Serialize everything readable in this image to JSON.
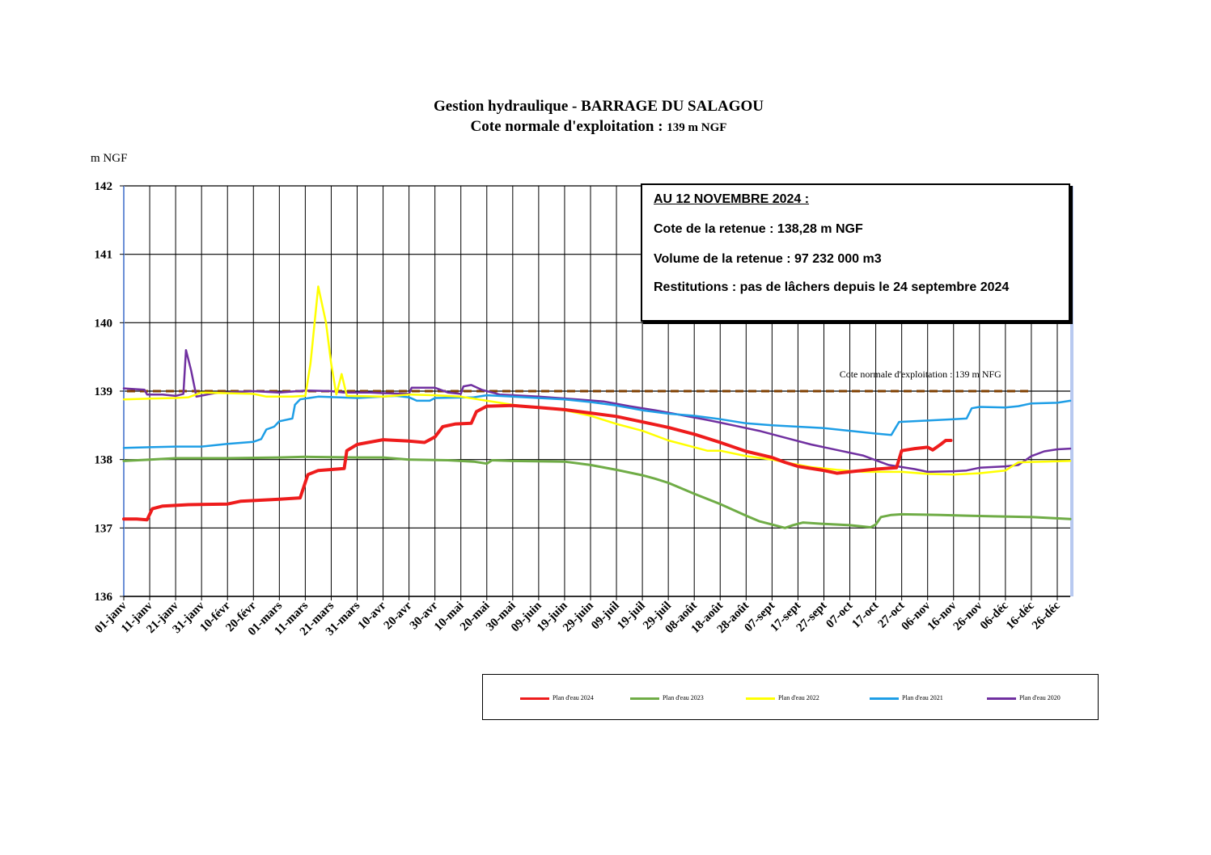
{
  "title_line1": "Gestion hydraulique - BARRAGE DU SALAGOU",
  "title_line2": "Cote normale d'exploitation :",
  "title_line2_value": "139 m NGF",
  "infobox": {
    "heading": "AU 12 NOVEMBRE 2024 :",
    "cote": "Cote de la retenue : 138,28 m NGF",
    "volume": "Volume de la retenue : 97 232 000 m3",
    "restitutions": "Restitutions : pas de lâchers depuis le 24 septembre 2024"
  },
  "colors": {
    "s2024": "#ee1c1c",
    "s2023": "#6fac46",
    "s2022": "#ffff00",
    "s2021": "#1e9ee6",
    "s2020": "#7030a0",
    "reference": "#7f3f00"
  },
  "chart_data": {
    "type": "line",
    "ylabel": "m NGF",
    "ylim": [
      136,
      142
    ],
    "yticks": [
      136,
      137,
      138,
      139,
      140,
      141,
      142
    ],
    "xlim_days": [
      0,
      365
    ],
    "x_ticks": [
      "01-janv",
      "11-janv",
      "21-janv",
      "31-janv",
      "10-févr",
      "20-févr",
      "01-mars",
      "11-mars",
      "21-mars",
      "31-mars",
      "10-avr",
      "20-avr",
      "30-avr",
      "10-mai",
      "20-mai",
      "30-mai",
      "09-juin",
      "19-juin",
      "29-juin",
      "09-juil",
      "19-juil",
      "29-juil",
      "08-août",
      "18-août",
      "28-août",
      "07-sept",
      "17-sept",
      "27-sept",
      "07-oct",
      "17-oct",
      "27-oct",
      "06-nov",
      "16-nov",
      "26-nov",
      "06-déc",
      "16-déc",
      "26-déc"
    ],
    "reference_line": {
      "value": 139,
      "label": "Cote normale d'exploitation : 139 m NFG"
    },
    "legend_position": "bottom",
    "series": [
      {
        "name": "Plan d'eau 2024",
        "color_key": "s2024",
        "width": 4,
        "points": [
          [
            0,
            137.13
          ],
          [
            5,
            137.13
          ],
          [
            9,
            137.12
          ],
          [
            11,
            137.28
          ],
          [
            15,
            137.32
          ],
          [
            25,
            137.34
          ],
          [
            40,
            137.35
          ],
          [
            45,
            137.39
          ],
          [
            60,
            137.42
          ],
          [
            68,
            137.44
          ],
          [
            71,
            137.78
          ],
          [
            75,
            137.84
          ],
          [
            85,
            137.87
          ],
          [
            86,
            138.13
          ],
          [
            90,
            138.22
          ],
          [
            100,
            138.29
          ],
          [
            110,
            138.27
          ],
          [
            116,
            138.25
          ],
          [
            120,
            138.33
          ],
          [
            123,
            138.48
          ],
          [
            128,
            138.52
          ],
          [
            134,
            138.53
          ],
          [
            136,
            138.7
          ],
          [
            140,
            138.78
          ],
          [
            150,
            138.79
          ],
          [
            160,
            138.76
          ],
          [
            170,
            138.73
          ],
          [
            180,
            138.68
          ],
          [
            190,
            138.63
          ],
          [
            200,
            138.55
          ],
          [
            210,
            138.47
          ],
          [
            220,
            138.37
          ],
          [
            230,
            138.25
          ],
          [
            240,
            138.12
          ],
          [
            250,
            138.03
          ],
          [
            255,
            137.96
          ],
          [
            260,
            137.9
          ],
          [
            270,
            137.84
          ],
          [
            275,
            137.8
          ],
          [
            282,
            137.83
          ],
          [
            290,
            137.86
          ],
          [
            298,
            137.88
          ],
          [
            300,
            138.13
          ],
          [
            305,
            138.16
          ],
          [
            310,
            138.18
          ],
          [
            312,
            138.14
          ],
          [
            315,
            138.22
          ],
          [
            317,
            138.28
          ],
          [
            319,
            138.28
          ]
        ]
      },
      {
        "name": "Plan d'eau 2023",
        "color_key": "s2023",
        "width": 3,
        "points": [
          [
            0,
            137.98
          ],
          [
            10,
            138.0
          ],
          [
            20,
            138.02
          ],
          [
            40,
            138.02
          ],
          [
            60,
            138.03
          ],
          [
            70,
            138.04
          ],
          [
            90,
            138.03
          ],
          [
            100,
            138.03
          ],
          [
            110,
            138.0
          ],
          [
            125,
            137.99
          ],
          [
            135,
            137.97
          ],
          [
            140,
            137.94
          ],
          [
            142,
            137.99
          ],
          [
            150,
            137.98
          ],
          [
            170,
            137.97
          ],
          [
            180,
            137.92
          ],
          [
            190,
            137.85
          ],
          [
            200,
            137.77
          ],
          [
            205,
            137.72
          ],
          [
            210,
            137.66
          ],
          [
            220,
            137.5
          ],
          [
            230,
            137.35
          ],
          [
            240,
            137.18
          ],
          [
            245,
            137.1
          ],
          [
            250,
            137.05
          ],
          [
            255,
            137.0
          ],
          [
            258,
            137.04
          ],
          [
            262,
            137.08
          ],
          [
            270,
            137.06
          ],
          [
            280,
            137.04
          ],
          [
            288,
            137.01
          ],
          [
            290,
            137.05
          ],
          [
            292,
            137.16
          ],
          [
            296,
            137.19
          ],
          [
            300,
            137.2
          ],
          [
            315,
            137.19
          ],
          [
            325,
            137.18
          ],
          [
            335,
            137.17
          ],
          [
            350,
            137.16
          ],
          [
            365,
            137.13
          ]
        ]
      },
      {
        "name": "Plan d'eau 2022",
        "color_key": "s2022",
        "width": 2.5,
        "points": [
          [
            0,
            138.88
          ],
          [
            10,
            138.89
          ],
          [
            20,
            138.9
          ],
          [
            25,
            138.91
          ],
          [
            30,
            138.98
          ],
          [
            50,
            138.96
          ],
          [
            55,
            138.92
          ],
          [
            65,
            138.92
          ],
          [
            70,
            138.93
          ],
          [
            72,
            139.4
          ],
          [
            75,
            140.53
          ],
          [
            78,
            140.0
          ],
          [
            80,
            139.4
          ],
          [
            82,
            138.95
          ],
          [
            84,
            139.25
          ],
          [
            86,
            138.93
          ],
          [
            100,
            138.92
          ],
          [
            110,
            138.95
          ],
          [
            120,
            138.94
          ],
          [
            130,
            138.92
          ],
          [
            140,
            138.86
          ],
          [
            150,
            138.8
          ],
          [
            160,
            138.76
          ],
          [
            170,
            138.72
          ],
          [
            180,
            138.64
          ],
          [
            190,
            138.52
          ],
          [
            200,
            138.42
          ],
          [
            210,
            138.28
          ],
          [
            220,
            138.18
          ],
          [
            225,
            138.13
          ],
          [
            230,
            138.13
          ],
          [
            240,
            138.05
          ],
          [
            250,
            138.0
          ],
          [
            255,
            137.96
          ],
          [
            265,
            137.89
          ],
          [
            275,
            137.85
          ],
          [
            285,
            137.82
          ],
          [
            300,
            137.82
          ],
          [
            310,
            137.79
          ],
          [
            320,
            137.78
          ],
          [
            330,
            137.8
          ],
          [
            340,
            137.84
          ],
          [
            345,
            137.96
          ],
          [
            355,
            137.97
          ],
          [
            365,
            137.98
          ]
        ]
      },
      {
        "name": "Plan d'eau 2021",
        "color_key": "s2021",
        "width": 2.5,
        "points": [
          [
            0,
            138.17
          ],
          [
            10,
            138.18
          ],
          [
            20,
            138.19
          ],
          [
            30,
            138.19
          ],
          [
            40,
            138.23
          ],
          [
            50,
            138.26
          ],
          [
            53,
            138.3
          ],
          [
            55,
            138.44
          ],
          [
            58,
            138.48
          ],
          [
            60,
            138.56
          ],
          [
            65,
            138.6
          ],
          [
            66,
            138.8
          ],
          [
            68,
            138.88
          ],
          [
            75,
            138.92
          ],
          [
            90,
            138.9
          ],
          [
            100,
            138.92
          ],
          [
            105,
            138.93
          ],
          [
            110,
            138.91
          ],
          [
            113,
            138.86
          ],
          [
            118,
            138.86
          ],
          [
            120,
            138.9
          ],
          [
            135,
            138.91
          ],
          [
            140,
            138.94
          ],
          [
            150,
            138.92
          ],
          [
            170,
            138.88
          ],
          [
            180,
            138.84
          ],
          [
            190,
            138.79
          ],
          [
            200,
            138.72
          ],
          [
            210,
            138.67
          ],
          [
            220,
            138.64
          ],
          [
            230,
            138.59
          ],
          [
            240,
            138.53
          ],
          [
            250,
            138.5
          ],
          [
            260,
            138.48
          ],
          [
            270,
            138.46
          ],
          [
            280,
            138.42
          ],
          [
            290,
            138.38
          ],
          [
            296,
            138.36
          ],
          [
            299,
            138.55
          ],
          [
            310,
            138.57
          ],
          [
            320,
            138.59
          ],
          [
            325,
            138.6
          ],
          [
            327,
            138.75
          ],
          [
            330,
            138.77
          ],
          [
            340,
            138.76
          ],
          [
            345,
            138.78
          ],
          [
            350,
            138.82
          ],
          [
            360,
            138.83
          ],
          [
            365,
            138.86
          ]
        ]
      },
      {
        "name": "Plan d'eau 2020",
        "color_key": "s2020",
        "width": 2.5,
        "points": [
          [
            0,
            139.04
          ],
          [
            8,
            139.02
          ],
          [
            9,
            138.95
          ],
          [
            15,
            138.95
          ],
          [
            20,
            138.93
          ],
          [
            23,
            138.96
          ],
          [
            24,
            139.6
          ],
          [
            26,
            139.3
          ],
          [
            28,
            138.92
          ],
          [
            35,
            138.97
          ],
          [
            50,
            139.0
          ],
          [
            60,
            138.98
          ],
          [
            70,
            139.01
          ],
          [
            80,
            139.0
          ],
          [
            85,
            138.98
          ],
          [
            95,
            138.98
          ],
          [
            100,
            138.97
          ],
          [
            110,
            138.96
          ],
          [
            111,
            139.05
          ],
          [
            120,
            139.05
          ],
          [
            125,
            138.98
          ],
          [
            130,
            138.96
          ],
          [
            131,
            139.07
          ],
          [
            134,
            139.09
          ],
          [
            138,
            139.02
          ],
          [
            145,
            138.95
          ],
          [
            160,
            138.92
          ],
          [
            175,
            138.88
          ],
          [
            185,
            138.85
          ],
          [
            195,
            138.78
          ],
          [
            205,
            138.72
          ],
          [
            215,
            138.65
          ],
          [
            225,
            138.58
          ],
          [
            235,
            138.5
          ],
          [
            245,
            138.42
          ],
          [
            255,
            138.32
          ],
          [
            265,
            138.22
          ],
          [
            275,
            138.14
          ],
          [
            285,
            138.06
          ],
          [
            295,
            137.92
          ],
          [
            305,
            137.86
          ],
          [
            310,
            137.82
          ],
          [
            320,
            137.83
          ],
          [
            325,
            137.84
          ],
          [
            330,
            137.88
          ],
          [
            340,
            137.9
          ],
          [
            345,
            137.92
          ],
          [
            350,
            138.05
          ],
          [
            355,
            138.12
          ],
          [
            360,
            138.15
          ],
          [
            365,
            138.16
          ]
        ]
      }
    ]
  }
}
